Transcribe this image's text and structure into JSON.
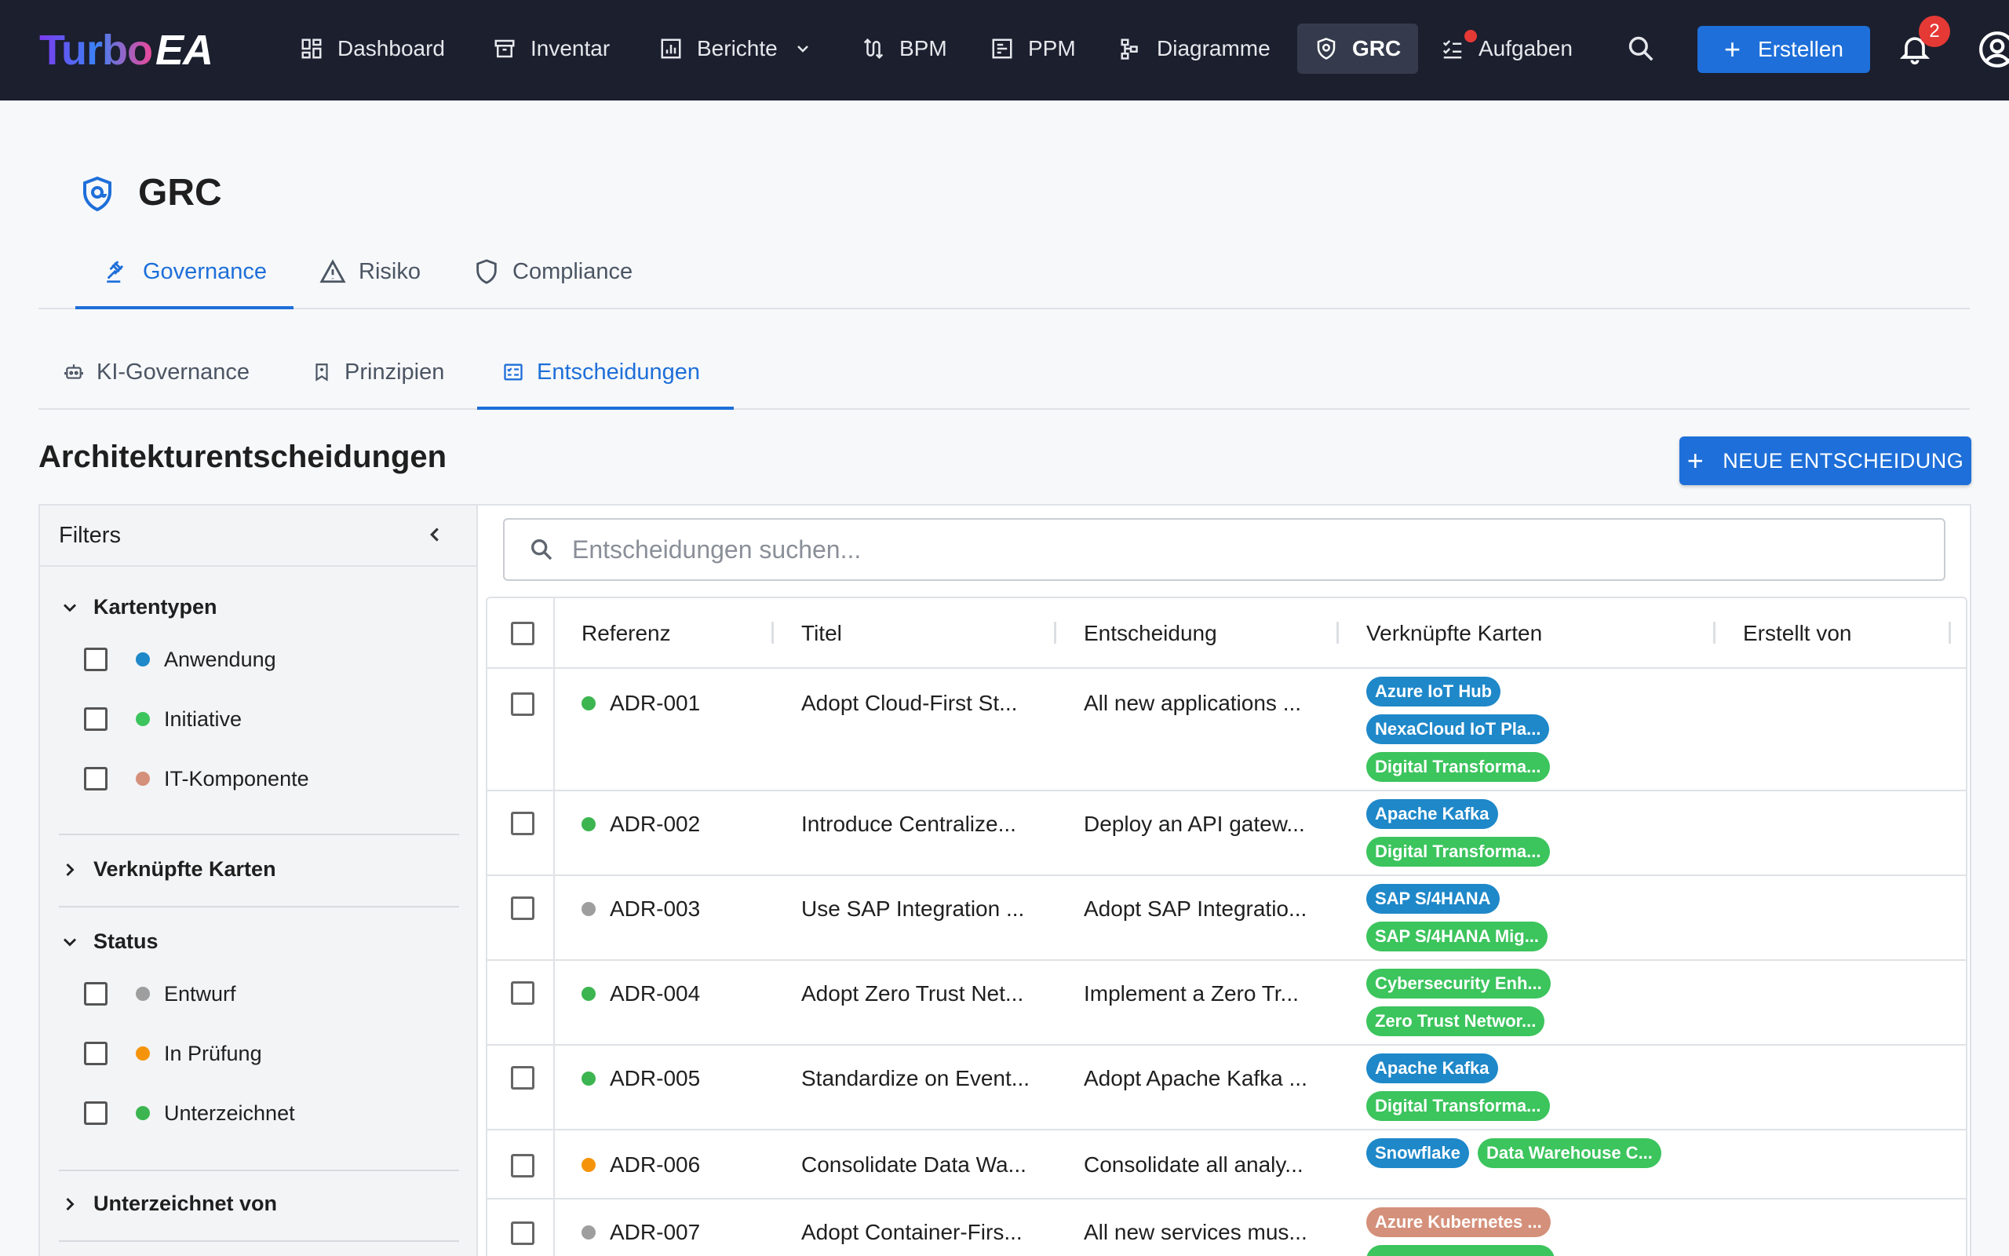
{
  "app": {
    "logo_part1": "Turbo",
    "logo_part2": "EA",
    "nav": [
      {
        "label": "Dashboard",
        "icon": "dashboard-icon"
      },
      {
        "label": "Inventar",
        "icon": "inventory-icon"
      },
      {
        "label": "Berichte",
        "icon": "reports-icon"
      },
      {
        "label": "BPM",
        "icon": "bpm-icon"
      },
      {
        "label": "PPM",
        "icon": "ppm-icon"
      },
      {
        "label": "Diagramme",
        "icon": "diagram-icon"
      },
      {
        "label": "GRC",
        "icon": "shield-icon"
      },
      {
        "label": "Aufgaben",
        "icon": "tasks-icon"
      }
    ],
    "create_label": "Erstellen",
    "notification_count": "2"
  },
  "page": {
    "title": "GRC",
    "tabs": [
      "Governance",
      "Risiko",
      "Compliance"
    ],
    "subtabs": [
      "KI-Governance",
      "Prinzipien",
      "Entscheidungen"
    ],
    "section_title": "Architekturentscheidungen",
    "new_button": "NEUE ENTSCHEIDUNG"
  },
  "filters": {
    "title": "Filters",
    "groups": {
      "card_types": {
        "label": "Kartentypen",
        "items": [
          {
            "label": "Anwendung",
            "color": "#1e88c9"
          },
          {
            "label": "Initiative",
            "color": "#3cc45d"
          },
          {
            "label": "IT-Komponente",
            "color": "#d4907a"
          }
        ]
      },
      "linked_cards": {
        "label": "Verknüpfte Karten"
      },
      "status": {
        "label": "Status",
        "items": [
          {
            "label": "Entwurf",
            "color": "#9e9e9e"
          },
          {
            "label": "In Prüfung",
            "color": "#f5940b"
          },
          {
            "label": "Unterzeichnet",
            "color": "#3cb550"
          }
        ]
      },
      "signed_by": {
        "label": "Unterzeichnet von"
      }
    }
  },
  "grid": {
    "search_placeholder": "Entscheidungen suchen...",
    "columns": [
      "Referenz",
      "Titel",
      "Entscheidung",
      "Verknüpfte Karten",
      "Erstellt von"
    ],
    "rows": [
      {
        "ref": "ADR-001",
        "status_color": "#3cb550",
        "title": "Adopt Cloud-First St...",
        "decision": "All new applications ...",
        "chips": [
          {
            "label": "Azure IoT Hub",
            "color": "#1e88c9"
          },
          {
            "label": "NexaCloud IoT Pla...",
            "color": "#1e88c9"
          },
          {
            "label": "Digital Transforma...",
            "color": "#3cc45d"
          }
        ]
      },
      {
        "ref": "ADR-002",
        "status_color": "#3cb550",
        "title": "Introduce Centralize...",
        "decision": "Deploy an API gatew...",
        "chips": [
          {
            "label": "Apache Kafka",
            "color": "#1e88c9"
          },
          {
            "label": "Digital Transforma...",
            "color": "#3cc45d"
          }
        ]
      },
      {
        "ref": "ADR-003",
        "status_color": "#9e9e9e",
        "title": "Use SAP Integration ...",
        "decision": "Adopt SAP Integratio...",
        "chips": [
          {
            "label": "SAP S/4HANA",
            "color": "#1e88c9"
          },
          {
            "label": "SAP S/4HANA Mig...",
            "color": "#3cc45d"
          }
        ]
      },
      {
        "ref": "ADR-004",
        "status_color": "#3cb550",
        "title": "Adopt Zero Trust Net...",
        "decision": "Implement a Zero Tr...",
        "chips": [
          {
            "label": "Cybersecurity Enh...",
            "color": "#3cc45d"
          },
          {
            "label": "Zero Trust Networ...",
            "color": "#3cc45d"
          }
        ]
      },
      {
        "ref": "ADR-005",
        "status_color": "#3cb550",
        "title": "Standardize on Event...",
        "decision": "Adopt Apache Kafka ...",
        "chips": [
          {
            "label": "Apache Kafka",
            "color": "#1e88c9"
          },
          {
            "label": "Digital Transforma...",
            "color": "#3cc45d"
          }
        ]
      },
      {
        "ref": "ADR-006",
        "status_color": "#f5940b",
        "title": "Consolidate Data Wa...",
        "decision": "Consolidate all analy...",
        "chips": [
          {
            "label": "Snowflake",
            "color": "#1e88c9"
          },
          {
            "label": "Data Warehouse C...",
            "color": "#3cc45d"
          }
        ]
      },
      {
        "ref": "ADR-007",
        "status_color": "#9e9e9e",
        "title": "Adopt Container-Firs...",
        "decision": "All new services mus...",
        "chips": [
          {
            "label": "Azure Kubernetes ...",
            "color": "#d4907a"
          },
          {
            "label": "",
            "color": "#3cc45d"
          }
        ]
      }
    ]
  }
}
